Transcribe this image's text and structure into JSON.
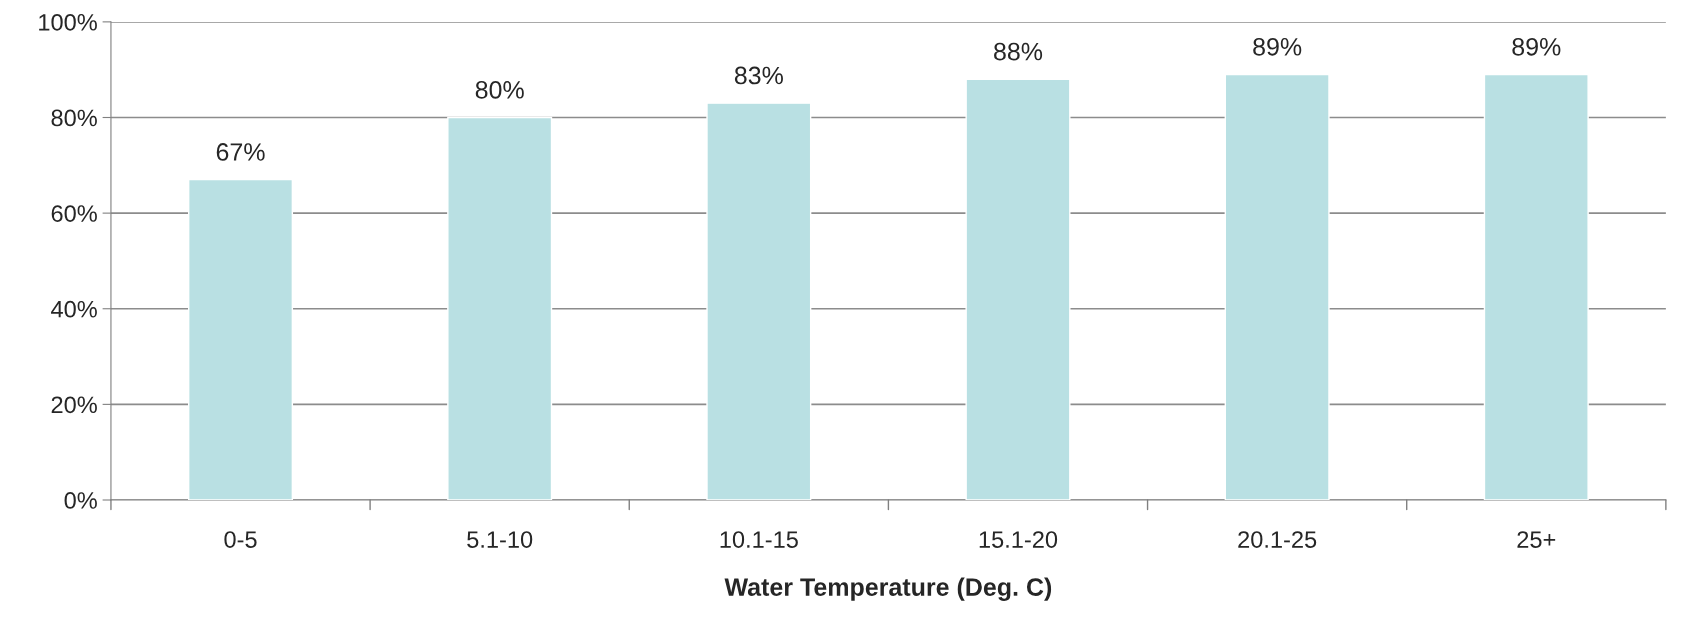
{
  "chart_data": {
    "type": "bar",
    "xlabel": "Water Temperature (Deg. C)",
    "categories": [
      "0-5",
      "5.1-10",
      "10.1-15",
      "15.1-20",
      "20.1-25",
      "25+"
    ],
    "values": [
      67,
      80,
      83,
      88,
      89,
      89
    ],
    "value_labels": [
      "67%",
      "80%",
      "83%",
      "88%",
      "89%",
      "89%"
    ],
    "color": "#b9e0e3",
    "ylim": [
      0,
      100
    ],
    "yticks": [
      {
        "value": 0,
        "label": "0%"
      },
      {
        "value": 20,
        "label": "20%"
      },
      {
        "value": 40,
        "label": "40%"
      },
      {
        "value": 60,
        "label": "60%"
      },
      {
        "value": 80,
        "label": "80%"
      },
      {
        "value": 100,
        "label": "100%"
      }
    ],
    "grid": "y",
    "legend": false
  }
}
